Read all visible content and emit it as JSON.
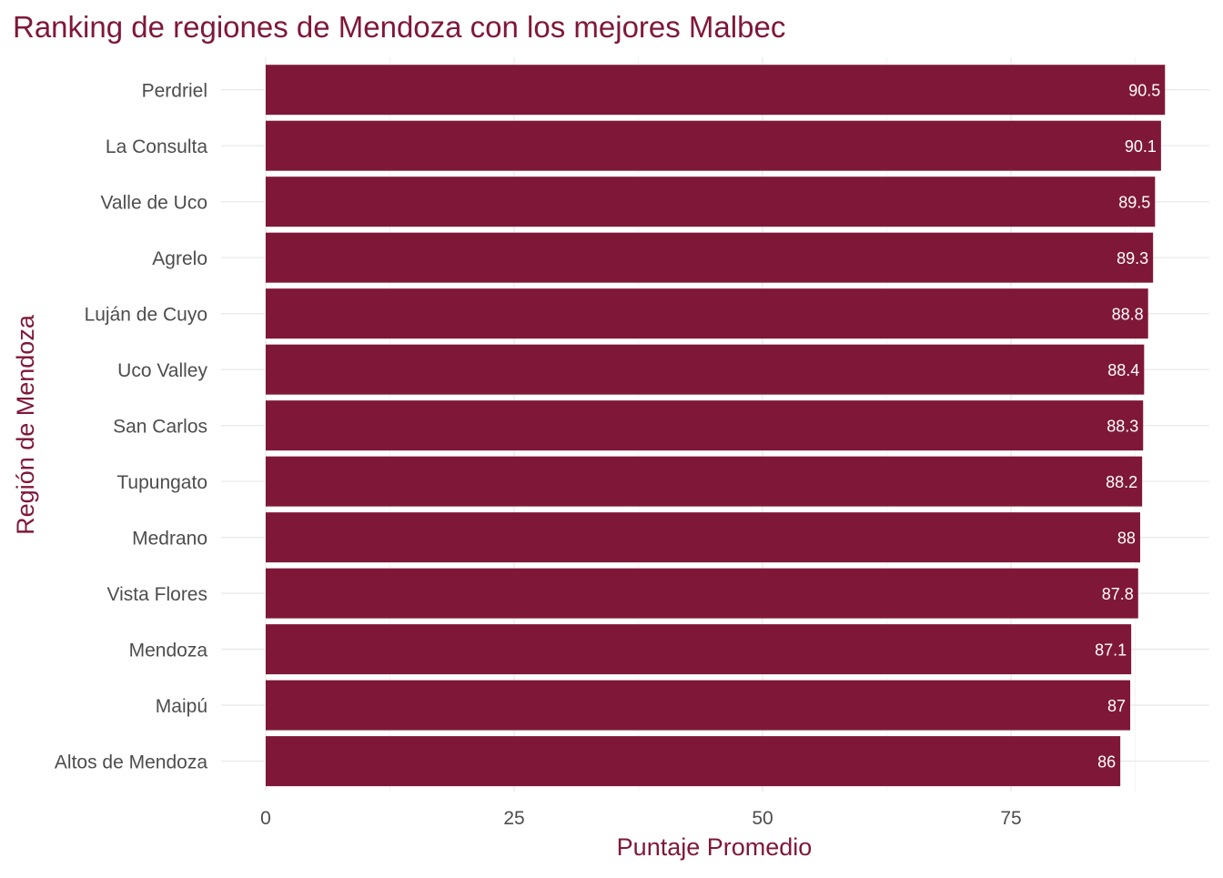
{
  "chart_data": {
    "type": "bar",
    "orientation": "horizontal",
    "title": "Ranking de regiones de Mendoza con los mejores Malbec",
    "xlabel": "Puntaje Promedio",
    "ylabel": "Región de Mendoza",
    "xlim": [
      0,
      95
    ],
    "xticks": [
      0,
      25,
      50,
      75
    ],
    "grid": true,
    "bar_color": "#7F1838",
    "categories": [
      "Perdriel",
      "La Consulta",
      "Valle de Uco",
      "Agrelo",
      "Luján de Cuyo",
      "Uco Valley",
      "San Carlos",
      "Tupungato",
      "Medrano",
      "Vista Flores",
      "Mendoza",
      "Maipú",
      "Altos de Mendoza"
    ],
    "values": [
      90.5,
      90.1,
      89.5,
      89.3,
      88.8,
      88.4,
      88.3,
      88.2,
      88,
      87.8,
      87.1,
      87,
      86
    ],
    "data_labels": [
      "90.5",
      "90.1",
      "89.5",
      "89.3",
      "88.8",
      "88.4",
      "88.3",
      "88.2",
      "88",
      "87.8",
      "87.1",
      "87",
      "86"
    ]
  }
}
